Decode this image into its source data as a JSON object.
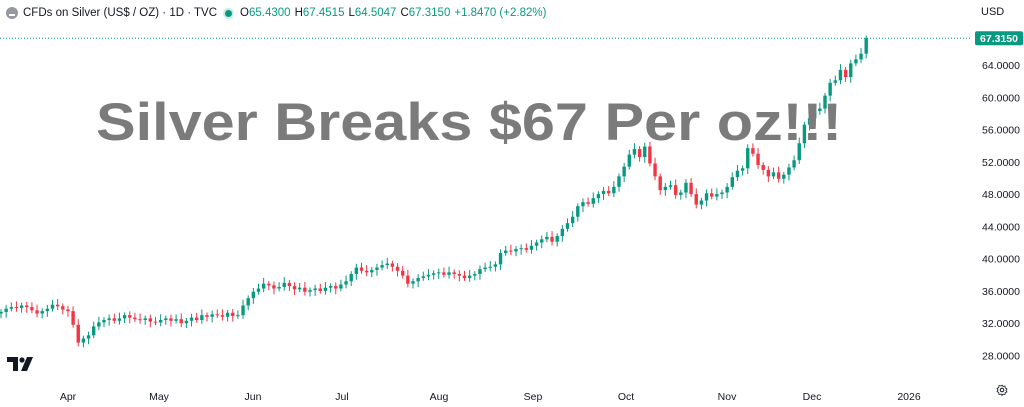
{
  "legend": {
    "symbol_icon": "currency-silver-icon",
    "title": "CFDs on Silver (US$ / OZ) · 1D · TVC",
    "open_label": "O",
    "open": "65.4300",
    "high_label": "H",
    "high": "67.4515",
    "low_label": "L",
    "low": "64.5047",
    "close_label": "C",
    "close": "67.3150",
    "change": "+1.8470 (+2.82%)"
  },
  "currency": "USD",
  "watermark": "Silver Breaks $67 Per oz!!!",
  "price_badge": "67.3150",
  "icons": {
    "logo": "tradingview-logo",
    "settings": "gear-icon"
  },
  "colors": {
    "up": "#089981",
    "down": "#f23645",
    "watermark": "#7b7b7b",
    "price_line": "#089981"
  },
  "chart_data": {
    "type": "candlestick",
    "interval": "1D",
    "x_tick_labels": [
      "Apr",
      "May",
      "Jun",
      "Jul",
      "Aug",
      "Sep",
      "Oct",
      "Nov",
      "Dec",
      "2026"
    ],
    "y_tick_labels": [
      "28.0000",
      "32.0000",
      "36.0000",
      "40.0000",
      "44.0000",
      "48.0000",
      "52.0000",
      "56.0000",
      "60.0000",
      "64.0000"
    ],
    "ylim": [
      26.0,
      70.0
    ],
    "grid": false,
    "last_price": 67.315,
    "close_series": [
      33.4,
      33.8,
      34.0,
      33.9,
      34.2,
      34.0,
      33.6,
      33.2,
      33.5,
      33.8,
      34.3,
      34.1,
      33.7,
      33.5,
      31.8,
      29.6,
      30.1,
      30.5,
      31.6,
      32.1,
      32.4,
      32.6,
      32.3,
      32.6,
      33.0,
      32.7,
      32.5,
      32.4,
      32.6,
      32.2,
      32.1,
      32.4,
      32.6,
      32.3,
      32.5,
      32.0,
      32.3,
      32.7,
      32.4,
      33.0,
      32.8,
      33.1,
      33.0,
      32.8,
      33.3,
      32.9,
      33.0,
      34.2,
      35.1,
      35.9,
      36.3,
      36.9,
      36.7,
      36.3,
      36.5,
      37.0,
      36.6,
      36.2,
      36.4,
      35.9,
      36.1,
      36.3,
      36.0,
      36.4,
      36.6,
      36.3,
      36.8,
      37.2,
      38.1,
      38.9,
      38.5,
      38.3,
      38.6,
      38.9,
      39.2,
      39.4,
      39.0,
      38.5,
      37.9,
      36.9,
      37.2,
      37.6,
      37.8,
      38.0,
      38.2,
      38.3,
      38.0,
      38.3,
      38.1,
      37.9,
      37.6,
      37.9,
      38.1,
      38.7,
      38.9,
      39.0,
      39.3,
      40.7,
      41.0,
      40.9,
      41.2,
      41.3,
      41.1,
      41.6,
      42.0,
      42.4,
      42.7,
      42.1,
      42.8,
      43.7,
      44.4,
      45.2,
      46.5,
      47.0,
      46.8,
      47.5,
      48.0,
      48.4,
      48.1,
      48.9,
      50.2,
      51.4,
      52.9,
      53.6,
      52.6,
      53.9,
      51.8,
      50.2,
      48.5,
      48.9,
      49.1,
      47.9,
      48.2,
      49.4,
      48.0,
      46.7,
      47.2,
      48.1,
      47.7,
      48.0,
      48.2,
      48.9,
      50.1,
      50.9,
      51.2,
      53.7,
      53.0,
      51.6,
      51.0,
      50.2,
      50.7,
      49.9,
      50.4,
      51.3,
      52.2,
      54.3,
      56.6,
      57.4,
      58.3,
      58.6,
      60.2,
      61.8,
      62.1,
      63.4,
      62.5,
      64.2,
      64.7,
      65.4,
      67.315
    ]
  }
}
